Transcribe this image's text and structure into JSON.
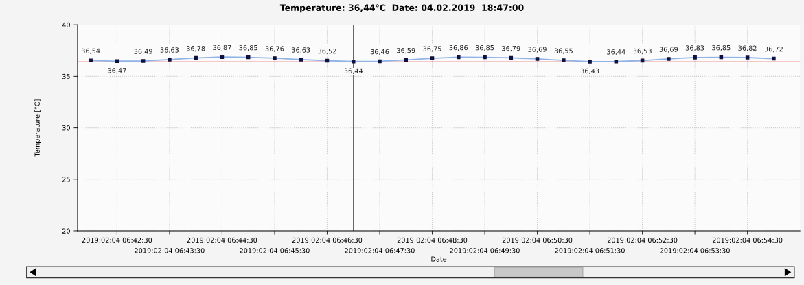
{
  "chart_data": {
    "type": "line",
    "title": "Temperature: 36,44°C  Date: 04.02.2019  18:47:00",
    "xlabel": "Date",
    "ylabel": "Temperature [°C]",
    "categories": [
      null,
      "2019:02:04 06:42:30",
      null,
      "2019:02:04 06:43:30",
      null,
      "2019:02:04 06:44:30",
      null,
      "2019:02:04 06:45:30",
      null,
      "2019:02:04 06:46:30",
      null,
      "2019:02:04 06:47:30",
      null,
      "2019:02:04 06:48:30",
      null,
      "2019:02:04 06:49:30",
      null,
      "2019:02:04 06:50:30",
      null,
      "2019:02:04 06:51:30",
      null,
      "2019:02:04 06:52:30",
      null,
      "2019:02:04 06:53:30",
      null,
      "2019:02:04 06:54:30",
      null
    ],
    "series": [
      {
        "color": "#8fb3e6",
        "values": [
          36.54,
          36.47,
          36.49,
          36.63,
          36.78,
          36.87,
          36.85,
          36.76,
          36.63,
          36.52,
          36.44,
          36.46,
          36.59,
          36.75,
          36.86,
          36.85,
          36.79,
          36.69,
          36.55,
          36.43,
          36.44,
          36.53,
          36.69,
          36.83,
          36.85,
          36.82,
          36.72
        ],
        "value_labels": [
          "36,54",
          "36,47",
          "36,49",
          "36,63",
          "36,78",
          "36,87",
          "36,85",
          "36,76",
          "36,63",
          "36,52",
          "36,44",
          "36,46",
          "36,59",
          "36,75",
          "36,86",
          "36,85",
          "36,79",
          "36,69",
          "36,55",
          "36,43",
          "36,44",
          "36,53",
          "36,69",
          "36,83",
          "36,85",
          "36,82",
          "36,72"
        ]
      }
    ],
    "marker": "square",
    "ylim": [
      20,
      40
    ],
    "yticks": [
      20,
      25,
      30,
      35,
      40
    ],
    "ref_lines": [
      {
        "axis": "y",
        "value": 36.4,
        "color": "#e03030"
      }
    ],
    "grid": true
  }
}
